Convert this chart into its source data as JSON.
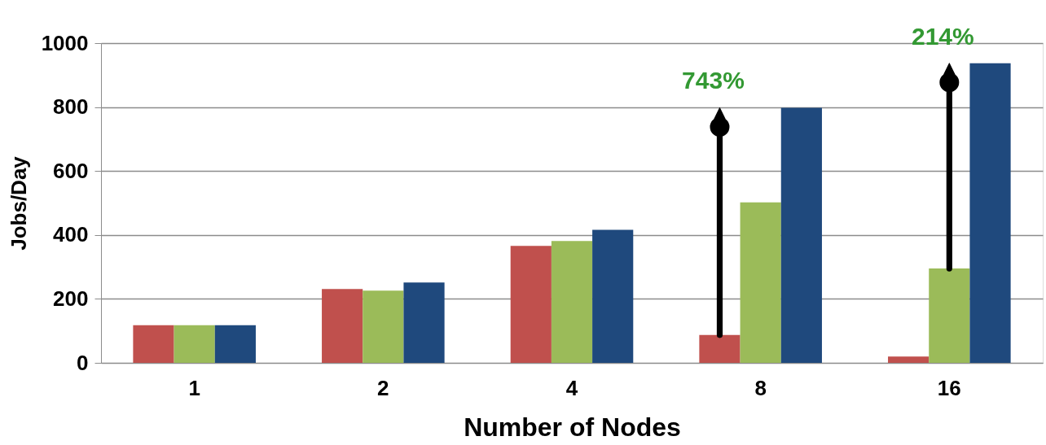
{
  "chart_data": {
    "type": "bar",
    "xlabel": "Number of Nodes",
    "ylabel": "Jobs/Day",
    "categories": [
      "1",
      "2",
      "4",
      "8",
      "16"
    ],
    "series": [
      {
        "color": "#c0504d",
        "values": [
          118,
          231,
          366,
          87,
          20
        ]
      },
      {
        "color": "#9bbb59",
        "values": [
          118,
          226,
          381,
          502,
          295
        ]
      },
      {
        "color": "#1f497d",
        "values": [
          118,
          251,
          416,
          798,
          937
        ]
      }
    ],
    "ylim": [
      0,
      1000
    ],
    "yticks": [
      0,
      200,
      400,
      600,
      800,
      {
        "value": 1000,
        "label": "1000"
      }
    ],
    "grid": "y",
    "legend": false,
    "annotations": [
      "743%",
      "214%"
    ]
  }
}
